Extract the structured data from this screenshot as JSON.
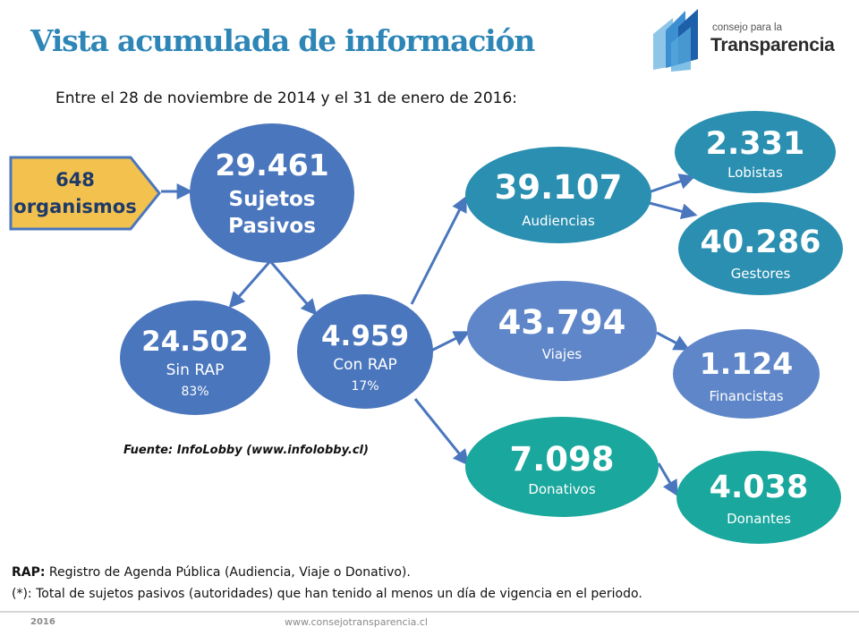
{
  "title": "Vista acumulada de información",
  "subtitle": "Entre el 28 de noviembre de 2014 y el 31 de enero de 2016:",
  "logo": {
    "line1": "consejo para la",
    "line2": "Transparencia"
  },
  "nodes": {
    "organismos": {
      "value": "648",
      "label": "organismos",
      "color": "#f2c14e"
    },
    "sujetos": {
      "value": "29.461",
      "label1": "Sujetos",
      "label2": "Pasivos",
      "color": "#4a76bd"
    },
    "sin_rap": {
      "value": "24.502",
      "label": "Sin RAP",
      "pct": "83%",
      "color": "#4a76bd"
    },
    "con_rap": {
      "value": "4.959",
      "label": "Con RAP",
      "pct": "17%",
      "color": "#4a76bd"
    },
    "audiencias": {
      "value": "39.107",
      "label": "Audiencias",
      "color": "#2a8fb0"
    },
    "viajes": {
      "value": "43.794",
      "label": "Viajes",
      "color": "#5f86c8"
    },
    "donativos": {
      "value": "7.098",
      "label": "Donativos",
      "color": "#1aa79d"
    },
    "lobistas": {
      "value": "2.331",
      "label": "Lobistas",
      "color": "#2a8fb0"
    },
    "gestores": {
      "value": "40.286",
      "label": "Gestores",
      "color": "#2a8fb0"
    },
    "financistas": {
      "value": "1.124",
      "label": "Financistas",
      "color": "#5f86c8"
    },
    "donantes": {
      "value": "4.038",
      "label": "Donantes",
      "color": "#1aa79d"
    }
  },
  "source": "Fuente: InfoLobby (www.infolobby.cl)",
  "notes": {
    "rap_term": "RAP:",
    "rap_text": " Registro de Agenda Pública (Audiencia, Viaje o Donativo).",
    "asterisk": "(*): Total de sujetos pasivos (autoridades) que han tenido al menos un día de vigencia en el periodo."
  },
  "footer": {
    "year": "2016",
    "url": "www.consejotransparencia.cl"
  },
  "colors": {
    "title": "#2e86b7",
    "arrow": "#4a76bd"
  }
}
